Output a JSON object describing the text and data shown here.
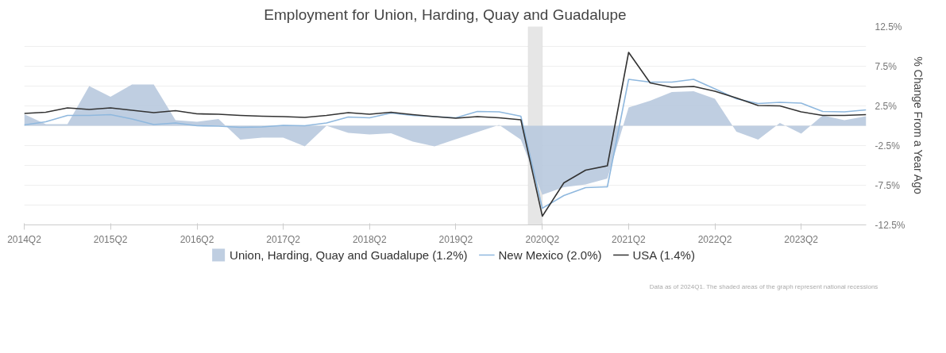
{
  "chart_data": {
    "type": "line",
    "title": "Employment for Union, Harding, Quay and Guadalupe",
    "ylabel": "% Change From a Year Ago",
    "x": [
      "2014-04",
      "2014-07",
      "2014-10",
      "2015-01",
      "2015-04",
      "2015-07",
      "2015-10",
      "2016-01",
      "2016-04",
      "2016-07",
      "2016-10",
      "2017-01",
      "2017-04",
      "2017-07",
      "2017-10",
      "2018-01",
      "2018-04",
      "2018-07",
      "2018-10",
      "2019-01",
      "2019-04",
      "2019-07",
      "2019-10",
      "2020-01",
      "2020-04",
      "2020-07",
      "2020-10",
      "2021-01",
      "2021-04",
      "2021-07",
      "2021-10",
      "2022-01",
      "2022-04",
      "2022-07",
      "2022-10",
      "2023-01",
      "2023-04",
      "2023-07",
      "2023-10",
      "2024-01"
    ],
    "series": [
      {
        "name": "Union, Harding, Quay and Guadalupe (1.2%)",
        "type": "area",
        "color": "#b8c9de",
        "values": [
          1.45,
          0.2,
          0.2,
          5.0,
          3.65,
          5.2,
          5.2,
          0.7,
          0.5,
          0.85,
          -1.75,
          -1.5,
          -1.5,
          -2.6,
          0.0,
          -0.9,
          -1.1,
          -0.95,
          -2.0,
          -2.6,
          -1.7,
          -0.8,
          0.1,
          -1.75,
          -8.7,
          -7.75,
          -7.4,
          -6.65,
          2.3,
          3.15,
          4.25,
          4.35,
          3.4,
          -0.75,
          -1.75,
          0.35,
          -1.0,
          1.3,
          0.7,
          1.2
        ]
      },
      {
        "name": "New Mexico (2.0%)",
        "color": "#8fb8de",
        "values": [
          0.1,
          0.5,
          1.3,
          1.3,
          1.4,
          0.85,
          0.15,
          0.35,
          0.0,
          -0.05,
          -0.2,
          -0.15,
          0.05,
          0.0,
          0.35,
          1.1,
          1.0,
          1.6,
          1.3,
          1.15,
          1.0,
          1.8,
          1.75,
          1.2,
          -10.4,
          -8.8,
          -7.8,
          -7.7,
          5.85,
          5.5,
          5.5,
          5.85,
          4.65,
          3.4,
          2.8,
          2.95,
          2.85,
          1.8,
          1.75,
          2.0
        ]
      },
      {
        "name": "USA (1.4%)",
        "color": "#333333",
        "values": [
          1.55,
          1.7,
          2.25,
          2.05,
          2.25,
          1.95,
          1.65,
          1.9,
          1.5,
          1.45,
          1.3,
          1.2,
          1.15,
          1.05,
          1.3,
          1.65,
          1.45,
          1.7,
          1.4,
          1.15,
          0.95,
          1.15,
          1.0,
          0.75,
          -11.4,
          -7.2,
          -5.6,
          -5.05,
          9.25,
          5.4,
          4.85,
          4.95,
          4.35,
          3.5,
          2.55,
          2.5,
          1.75,
          1.3,
          1.3,
          1.4
        ]
      }
    ],
    "xlim": [
      "2014-04",
      "2024-01"
    ],
    "xticks": [
      {
        "value": "2014-04",
        "label": "2014Q2"
      },
      {
        "value": "2015-04",
        "label": "2015Q2"
      },
      {
        "value": "2016-04",
        "label": "2016Q2"
      },
      {
        "value": "2017-04",
        "label": "2017Q2"
      },
      {
        "value": "2018-04",
        "label": "2018Q2"
      },
      {
        "value": "2019-04",
        "label": "2019Q2"
      },
      {
        "value": "2020-04",
        "label": "2020Q2"
      },
      {
        "value": "2021-04",
        "label": "2021Q2"
      },
      {
        "value": "2022-04",
        "label": "2022Q2"
      },
      {
        "value": "2023-04",
        "label": "2023Q2"
      }
    ],
    "ylim": [
      -12.5,
      12.5
    ],
    "yticks": [
      {
        "value": -12.5,
        "label": "-12.5%"
      },
      {
        "value": -10,
        "label": null
      },
      {
        "value": -7.5,
        "label": "-7.5%"
      },
      {
        "value": -5,
        "label": null
      },
      {
        "value": -2.5,
        "label": "-2.5%"
      },
      {
        "value": 0,
        "label": null
      },
      {
        "value": 2.5,
        "label": "2.5%"
      },
      {
        "value": 5,
        "label": null
      },
      {
        "value": 7.5,
        "label": "7.5%"
      },
      {
        "value": 10,
        "label": null
      },
      {
        "value": 12.5,
        "label": "12.5%"
      }
    ],
    "bands": [
      {
        "axis": "x",
        "from": "2020-02",
        "to": "2020-04",
        "color": "#e6e6e6"
      }
    ],
    "grid": "y",
    "legend": "bottom",
    "annotations": [
      "Data as of 2024Q1. The shaded areas of the graph represent national recessions"
    ]
  }
}
